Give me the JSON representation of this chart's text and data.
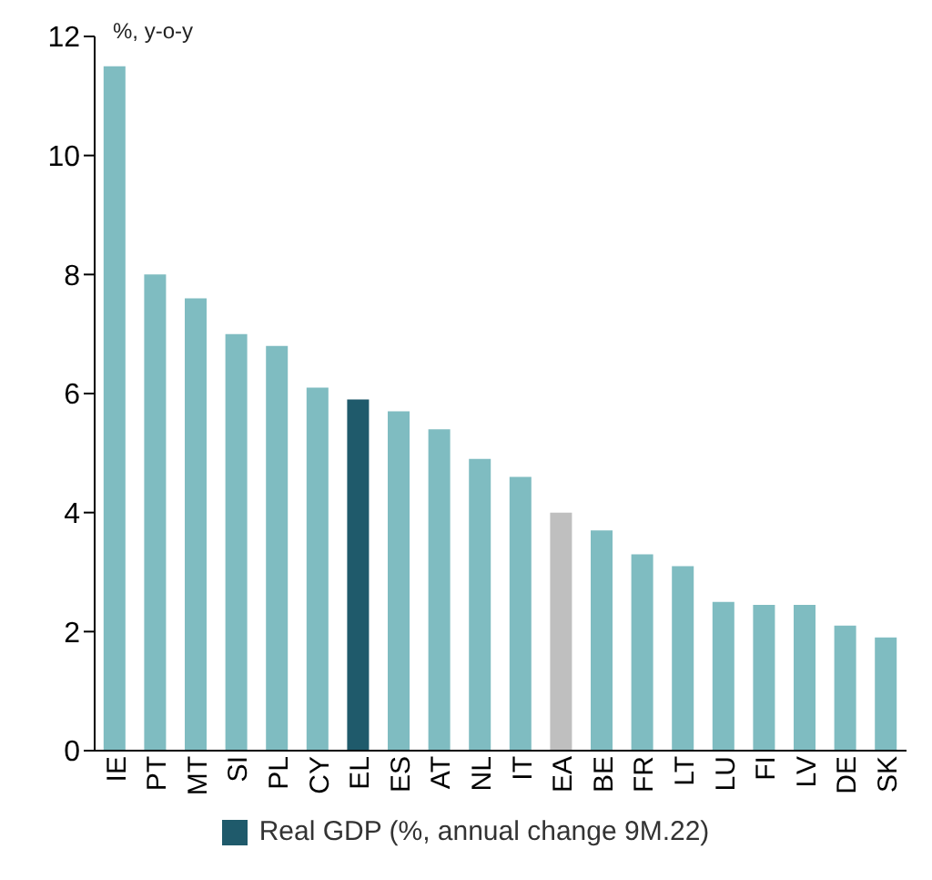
{
  "chart_data": {
    "type": "bar",
    "ylabel": "%, y-o-y",
    "categories": [
      "IE",
      "PT",
      "MT",
      "SI",
      "PL",
      "CY",
      "EL",
      "ES",
      "AT",
      "NL",
      "IT",
      "EA",
      "BE",
      "FR",
      "LT",
      "LU",
      "FI",
      "LV",
      "DE",
      "SK"
    ],
    "series": [
      {
        "name": "Real GDP (%, annual change 9M.22)",
        "color": "#1f5a6b",
        "values": [
          11.5,
          8.0,
          7.6,
          7.0,
          6.8,
          6.1,
          5.9,
          5.7,
          5.4,
          4.9,
          4.6,
          4.0,
          3.7,
          3.3,
          3.1,
          2.5,
          2.45,
          2.45,
          2.1,
          1.9
        ],
        "colors": [
          "#7fbcc1",
          "#7fbcc1",
          "#7fbcc1",
          "#7fbcc1",
          "#7fbcc1",
          "#7fbcc1",
          "#1f5a6b",
          "#7fbcc1",
          "#7fbcc1",
          "#7fbcc1",
          "#7fbcc1",
          "#bfbfbf",
          "#7fbcc1",
          "#7fbcc1",
          "#7fbcc1",
          "#7fbcc1",
          "#7fbcc1",
          "#7fbcc1",
          "#7fbcc1",
          "#7fbcc1"
        ]
      }
    ],
    "ylim": [
      0,
      12
    ],
    "yticks": [
      0,
      2,
      4,
      6,
      8,
      10,
      12
    ],
    "grid": false,
    "legend": "bottom"
  }
}
